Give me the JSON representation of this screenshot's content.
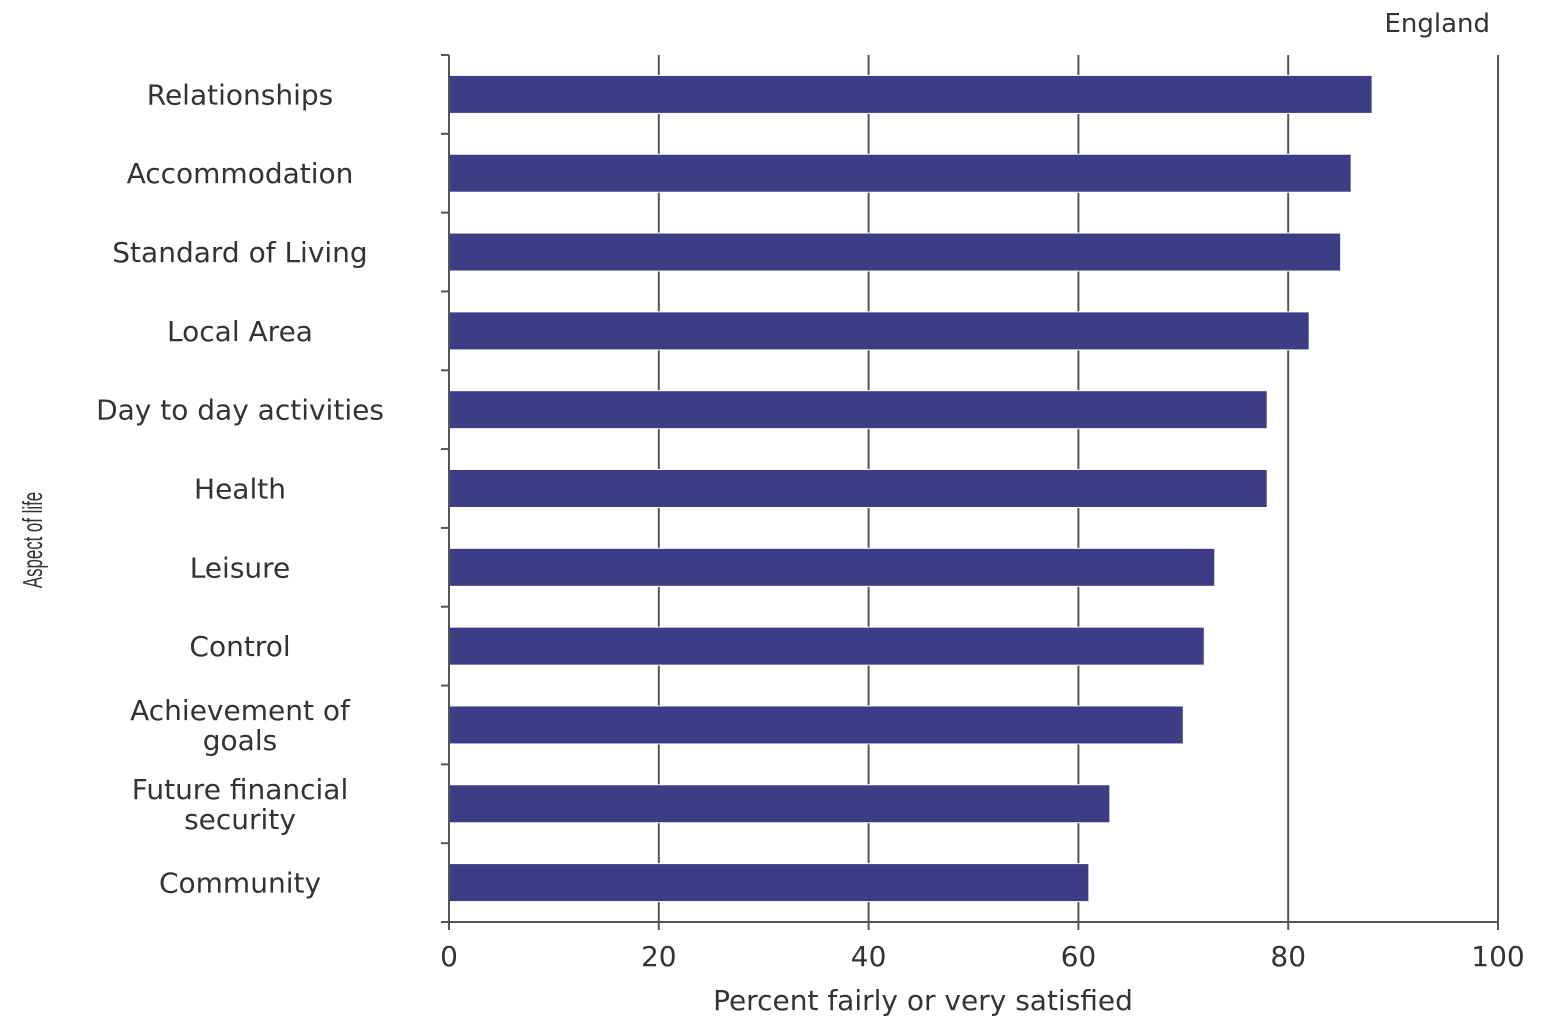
{
  "chart_data": {
    "type": "bar",
    "orientation": "horizontal",
    "region_label": "England",
    "xlabel": "Percent fairly or very satisfied",
    "ylabel": "Aspect of life",
    "xlim": [
      0,
      100
    ],
    "xticks": [
      "0",
      "20",
      "40",
      "60",
      "80",
      "100"
    ],
    "grid": true,
    "bar_color": "#3d3d85",
    "categories": [
      "Relationships",
      "Accommodation",
      "Standard of Living",
      "Local Area",
      "Day to day activities",
      "Health",
      "Leisure",
      "Control",
      "Achievement of goals",
      "Future financial security",
      "Community"
    ],
    "category_lines": [
      [
        "Relationships"
      ],
      [
        "Accommodation"
      ],
      [
        "Standard of Living"
      ],
      [
        "Local Area"
      ],
      [
        "Day to day activities"
      ],
      [
        "Health"
      ],
      [
        "Leisure"
      ],
      [
        "Control"
      ],
      [
        "Achievement of",
        "goals"
      ],
      [
        "Future financial",
        "security"
      ],
      [
        "Community"
      ]
    ],
    "values": [
      88,
      86,
      85,
      82,
      78,
      78,
      73,
      72,
      70,
      63,
      61
    ]
  }
}
